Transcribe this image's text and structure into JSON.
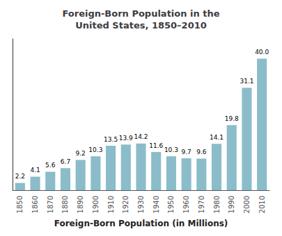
{
  "chart_data": {
    "type": "bar",
    "title": "Foreign-Born Population in the\nUnited States, 1850–2010",
    "xlabel": "Foreign-Born Population (in Millions)",
    "categories": [
      "1850",
      "1860",
      "1870",
      "1880",
      "1890",
      "1900",
      "1910",
      "1920",
      "1930",
      "1940",
      "1950",
      "1960",
      "1970",
      "1980",
      "1990",
      "2000",
      "2010"
    ],
    "values": [
      2.2,
      4.1,
      5.6,
      6.7,
      9.2,
      10.3,
      13.5,
      13.9,
      14.2,
      11.6,
      10.3,
      9.7,
      9.6,
      14.1,
      19.8,
      31.1,
      40.0
    ],
    "value_labels": [
      "2.2",
      "4.1",
      "5.6",
      "6.7",
      "9.2",
      "10.3",
      "13.5",
      "13.9",
      "14.2",
      "11.6",
      "10.3",
      "9.7",
      "9.6",
      "14.1",
      "19.8",
      "31.1",
      "40.0"
    ],
    "color": "#8BBCCA",
    "ylim": [
      0,
      46
    ],
    "yticks": [],
    "grid": false,
    "data_labels": true,
    "tick_labels": "x"
  }
}
